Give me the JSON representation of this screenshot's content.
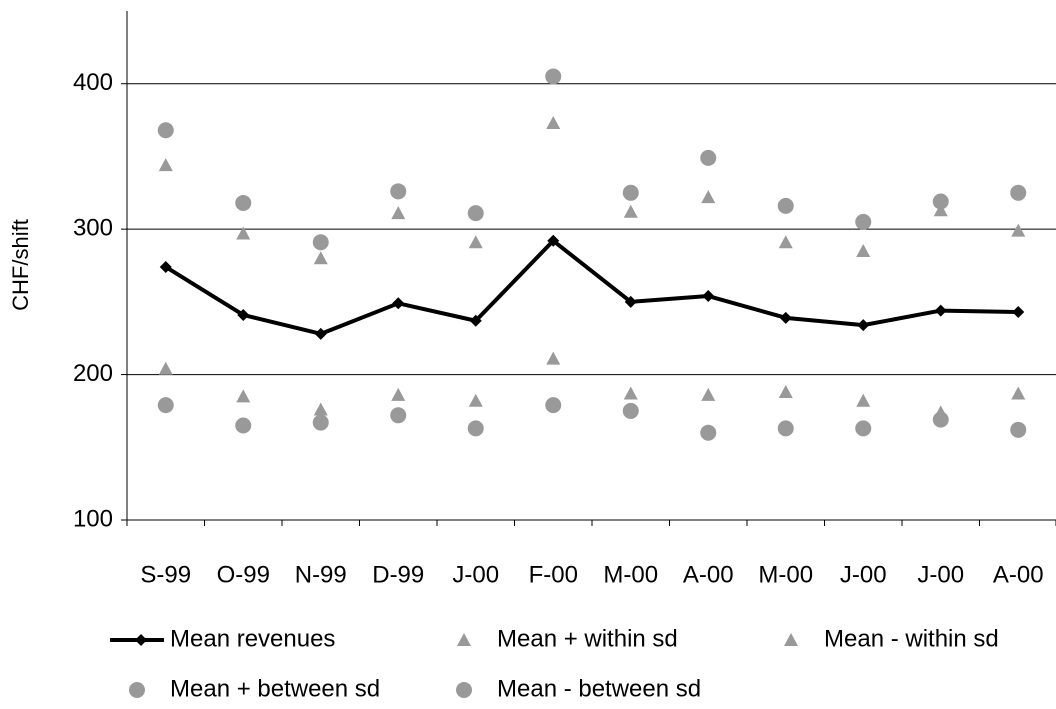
{
  "chart_data": {
    "type": "line",
    "y_label": "CHF/shift",
    "categories": [
      "S-99",
      "O-99",
      "N-99",
      "D-99",
      "J-00",
      "F-00",
      "M-00",
      "A-00",
      "M-00",
      "J-00",
      "J-00",
      "A-00"
    ],
    "series": [
      {
        "name": "Mean revenues",
        "color": "#000000",
        "marker": "diamond",
        "line": true,
        "values": [
          274,
          241,
          228,
          249,
          237,
          292,
          250,
          254,
          239,
          234,
          244,
          243
        ]
      },
      {
        "name": "Mean + within sd",
        "color": "#999999",
        "marker": "triangle",
        "line": false,
        "values": [
          344,
          297,
          280,
          311,
          291,
          373,
          312,
          322,
          291,
          285,
          313,
          299
        ]
      },
      {
        "name": "Mean - within sd",
        "color": "#999999",
        "marker": "triangle",
        "line": false,
        "values": [
          204,
          185,
          176,
          186,
          182,
          211,
          187,
          186,
          188,
          182,
          174,
          187
        ]
      },
      {
        "name": "Mean + between sd",
        "color": "#999999",
        "marker": "circle",
        "line": false,
        "values": [
          368,
          318,
          291,
          326,
          311,
          405,
          325,
          349,
          316,
          305,
          319,
          325
        ]
      },
      {
        "name": "Mean - between sd",
        "color": "#999999",
        "marker": "circle",
        "line": false,
        "values": [
          179,
          165,
          167,
          172,
          163,
          179,
          175,
          160,
          163,
          163,
          169,
          162
        ]
      }
    ],
    "ylim": [
      100,
      450
    ],
    "yticks": [
      100,
      200,
      300,
      400
    ],
    "grid": true,
    "legend": "bottom"
  }
}
